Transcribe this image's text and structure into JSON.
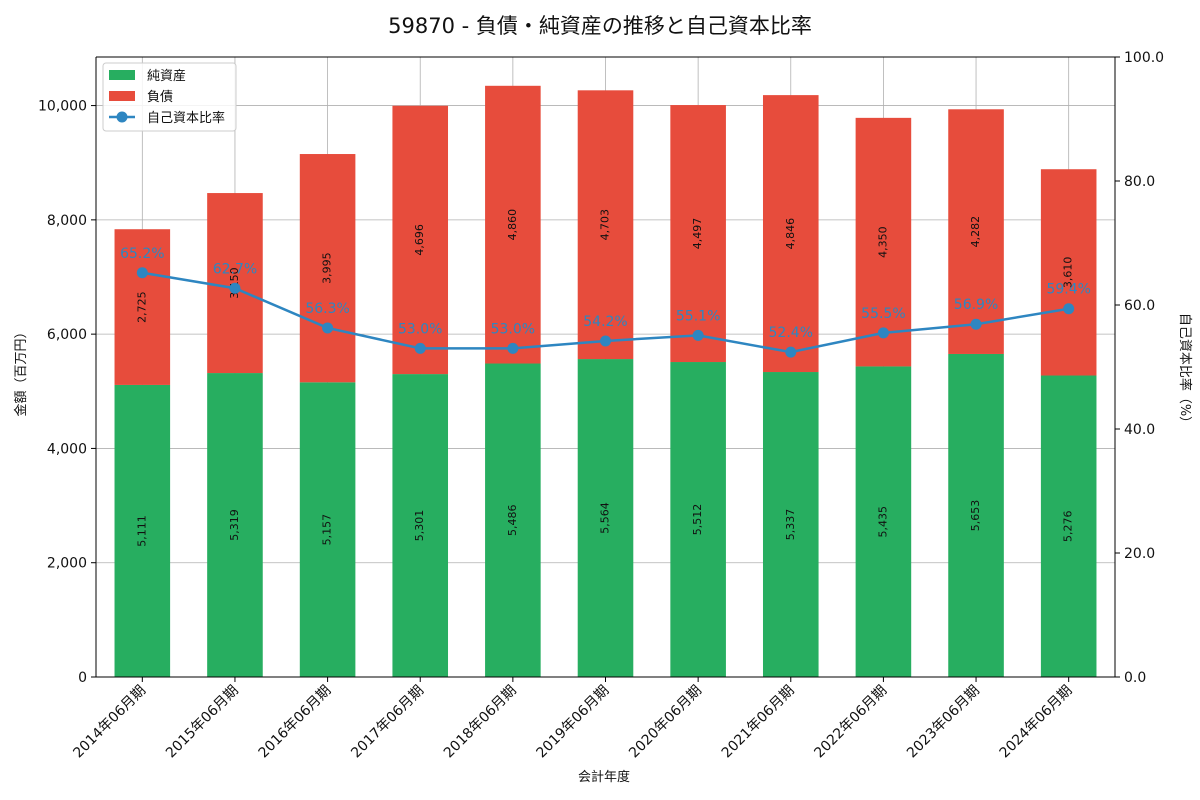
{
  "chart_data": {
    "type": "bar",
    "title": "59870 - 負債・純資産の推移と自己資本比率",
    "xlabel": "会計年度",
    "ylabel": "金額（百万円）",
    "y2label": "自己資本比率（%）",
    "categories": [
      "2014年06月期",
      "2015年06月期",
      "2016年06月期",
      "2017年06月期",
      "2018年06月期",
      "2019年06月期",
      "2020年06月期",
      "2021年06月期",
      "2022年06月期",
      "2023年06月期",
      "2024年06月期"
    ],
    "series": [
      {
        "name": "純資産",
        "kind": "bar",
        "color": "#27ae60",
        "values": [
          5111,
          5319,
          5157,
          5301,
          5486,
          5564,
          5512,
          5337,
          5435,
          5653,
          5276
        ]
      },
      {
        "name": "負債",
        "kind": "bar",
        "color": "#e74c3c",
        "values": [
          2725,
          3150,
          3995,
          4696,
          4860,
          4703,
          4497,
          4846,
          4350,
          4282,
          3610
        ]
      },
      {
        "name": "自己資本比率",
        "kind": "line",
        "axis": "right",
        "color": "#2e86c1",
        "values": [
          65.2,
          62.7,
          56.3,
          53.0,
          53.0,
          54.2,
          55.1,
          52.4,
          55.5,
          56.9,
          59.4
        ]
      }
    ],
    "bar_labels": {
      "純資産": [
        "5,111",
        "5,319",
        "5,157",
        "5,301",
        "5,486",
        "5,564",
        "5,512",
        "5,337",
        "5,435",
        "5,653",
        "5,276"
      ],
      "負債": [
        "2,725",
        "3,150",
        "3,995",
        "4,696",
        "4,860",
        "4,703",
        "4,497",
        "4,846",
        "4,350",
        "4,282",
        "3,610"
      ]
    },
    "ratio_labels": [
      "65.2%",
      "62.7%",
      "56.3%",
      "53.0%",
      "53.0%",
      "54.2%",
      "55.1%",
      "52.4%",
      "55.5%",
      "56.9%",
      "59.4%"
    ],
    "ylim": [
      0,
      10850
    ],
    "y2lim": [
      0,
      100
    ],
    "yticks": [
      0,
      2000,
      4000,
      6000,
      8000,
      10000
    ],
    "ytick_labels": [
      "0",
      "2,000",
      "4,000",
      "6,000",
      "8,000",
      "10,000"
    ],
    "y2ticks": [
      0,
      20,
      40,
      60,
      80,
      100
    ],
    "y2tick_labels": [
      "0.0",
      "20.0",
      "40.0",
      "60.0",
      "80.0",
      "100.0"
    ],
    "grid": true,
    "legend_position": "top-left"
  }
}
